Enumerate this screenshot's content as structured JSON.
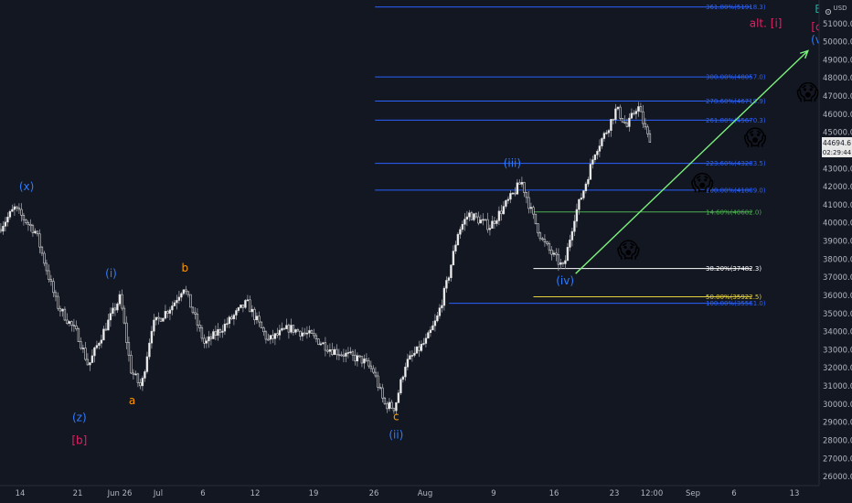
{
  "currency": "USD",
  "last_price": "44694.6",
  "countdown": "02:29:44",
  "x_tick_labels": [
    "14",
    "21",
    "Jun 26",
    "Jul",
    "6",
    "12",
    "19",
    "26",
    "Aug",
    "9",
    "16",
    "23",
    "12:00",
    "Sep",
    "6",
    "13"
  ],
  "colors": {
    "background": "#131722",
    "fib_blue": "#2962ff",
    "fib_green": "#4caf50",
    "fib_white": "#ffffff",
    "fib_yellow": "#e6d13f",
    "arrow": "#7cf27c",
    "wave_blue": "#2f7bff",
    "wave_orange": "#ff9800",
    "wave_pink": "#e91e63",
    "wave_teal": "#26a69a",
    "candle": "#e8e8e8",
    "last_price_bg": "#e8e8e8"
  },
  "chart_data": {
    "type": "candlestick",
    "title": "",
    "xlabel": "",
    "ylabel": "",
    "y_axis_side": "right",
    "ylim": [
      25500,
      52300
    ],
    "y_ticks": [
      26000,
      27000,
      28000,
      29000,
      30000,
      31000,
      32000,
      33000,
      34000,
      35000,
      36000,
      37000,
      38000,
      39000,
      40000,
      41000,
      42000,
      43000,
      44000,
      45000,
      46000,
      47000,
      48000,
      49000,
      50000,
      51000,
      52000
    ],
    "y_tick_labels": [
      "26000.0",
      "27000.0",
      "28000.0",
      "29000.0",
      "30000.0",
      "31000.0",
      "32000.0",
      "33000.0",
      "34000.0",
      "35000.0",
      "36000.0",
      "37000.0",
      "38000.0",
      "39000.0",
      "40000.0",
      "41000.0",
      "42000.0",
      "43000.0",
      "44000.0",
      "45000.0",
      "46000.0",
      "47000.0",
      "48000.0",
      "49000.0",
      "50000.0",
      "51000.0",
      "52000.0"
    ],
    "grid": false,
    "price_path": [
      {
        "date": "2021-06-10",
        "price": 36200
      },
      {
        "date": "2021-06-12",
        "price": 38500
      },
      {
        "date": "2021-06-15",
        "price": 40800
      },
      {
        "date": "2021-06-17",
        "price": 39500
      },
      {
        "date": "2021-06-19",
        "price": 35500
      },
      {
        "date": "2021-06-21",
        "price": 33800
      },
      {
        "date": "2021-06-22",
        "price": 32100
      },
      {
        "date": "2021-06-23",
        "price": 33500
      },
      {
        "date": "2021-06-25",
        "price": 35900
      },
      {
        "date": "2021-06-26",
        "price": 31900
      },
      {
        "date": "2021-06-27",
        "price": 30900
      },
      {
        "date": "2021-06-28",
        "price": 34300
      },
      {
        "date": "2021-06-30",
        "price": 35500
      },
      {
        "date": "2021-07-01",
        "price": 36500
      },
      {
        "date": "2021-07-03",
        "price": 33300
      },
      {
        "date": "2021-07-05",
        "price": 34400
      },
      {
        "date": "2021-07-07",
        "price": 35600
      },
      {
        "date": "2021-07-09",
        "price": 33500
      },
      {
        "date": "2021-07-11",
        "price": 34200
      },
      {
        "date": "2021-07-13",
        "price": 33800
      },
      {
        "date": "2021-07-15",
        "price": 33000
      },
      {
        "date": "2021-07-18",
        "price": 32400
      },
      {
        "date": "2021-07-19",
        "price": 31800
      },
      {
        "date": "2021-07-20",
        "price": 30000
      },
      {
        "date": "2021-07-21",
        "price": 29800
      },
      {
        "date": "2021-07-22",
        "price": 32200
      },
      {
        "date": "2021-07-24",
        "price": 33500
      },
      {
        "date": "2021-07-25",
        "price": 34700
      },
      {
        "date": "2021-07-26",
        "price": 36800
      },
      {
        "date": "2021-07-27",
        "price": 39500
      },
      {
        "date": "2021-07-28",
        "price": 40500
      },
      {
        "date": "2021-07-30",
        "price": 39800
      },
      {
        "date": "2021-08-01",
        "price": 41400
      },
      {
        "date": "2021-08-02",
        "price": 42300
      },
      {
        "date": "2021-08-03",
        "price": 40500
      },
      {
        "date": "2021-08-04",
        "price": 39000
      },
      {
        "date": "2021-08-05",
        "price": 38200
      },
      {
        "date": "2021-08-06",
        "price": 37500
      },
      {
        "date": "2021-08-07",
        "price": 40300
      },
      {
        "date": "2021-08-08",
        "price": 42000
      },
      {
        "date": "2021-08-09",
        "price": 44000
      },
      {
        "date": "2021-08-10",
        "price": 45000
      },
      {
        "date": "2021-08-11",
        "price": 46300
      },
      {
        "date": "2021-08-12",
        "price": 45300
      },
      {
        "date": "2021-08-13",
        "price": 46500
      },
      {
        "date": "2021-08-14",
        "price": 44694.6
      }
    ],
    "fib_levels": [
      {
        "label": "361.80%(51918.3)",
        "price": 51918.3,
        "color": "#2962ff",
        "start": "2021-07-19"
      },
      {
        "label": "300.00%(48057.0)",
        "price": 48057.0,
        "color": "#2962ff",
        "start": "2021-07-19"
      },
      {
        "label": "278.60%(46719.9)",
        "price": 46719.9,
        "color": "#2962ff",
        "start": "2021-07-19"
      },
      {
        "label": "261.80%(45670.3)",
        "price": 45670.3,
        "color": "#2962ff",
        "start": "2021-07-19"
      },
      {
        "label": "223.60%(43283.5)",
        "price": 43283.5,
        "color": "#2962ff",
        "start": "2021-07-19"
      },
      {
        "label": "200.00%(41809.0)",
        "price": 41809.0,
        "color": "#2962ff",
        "start": "2021-07-19"
      },
      {
        "label": "14.60%(40602.0)",
        "price": 40602.0,
        "color": "#4caf50",
        "start": "2021-08-03"
      },
      {
        "label": "38.20%(37482.3)",
        "price": 37482.3,
        "color": "#ffffff",
        "start": "2021-08-03"
      },
      {
        "label": "50.00%(35922.5)",
        "price": 35922.5,
        "color": "#e6d13f",
        "start": "2021-08-03"
      },
      {
        "label": "100.00%(35561.0)",
        "price": 35561.0,
        "color": "#2962ff",
        "start": "2021-07-26"
      }
    ],
    "wave_labels": [
      {
        "text": "(x)",
        "date": "2021-06-16",
        "price": 41800,
        "color": "#2f7bff"
      },
      {
        "text": "(z)",
        "date": "2021-06-21",
        "price": 29050,
        "color": "#2f7bff"
      },
      {
        "text": "[b]",
        "date": "2021-06-21",
        "price": 27800,
        "color": "#e91e63"
      },
      {
        "text": "(i)",
        "date": "2021-06-24",
        "price": 37000,
        "color": "#2f7bff"
      },
      {
        "text": "a",
        "date": "2021-06-26",
        "price": 30000,
        "color": "#ff9800"
      },
      {
        "text": "b",
        "date": "2021-07-01",
        "price": 37300,
        "color": "#ff9800"
      },
      {
        "text": "c",
        "date": "2021-07-21",
        "price": 29100,
        "color": "#ff9800"
      },
      {
        "text": "(ii)",
        "date": "2021-07-21",
        "price": 28100,
        "color": "#2f7bff"
      },
      {
        "text": "(iii)",
        "date": "2021-08-01",
        "price": 43100,
        "color": "#2f7bff"
      },
      {
        "text": "(iv)",
        "date": "2021-08-06",
        "price": 36600,
        "color": "#2f7bff"
      },
      {
        "text": "B",
        "date": "2021-08-30",
        "price": 51600,
        "color": "#26a69a"
      },
      {
        "text": "alt. [i]",
        "date": "2021-08-25",
        "price": 50800,
        "color": "#e91e63"
      },
      {
        "text": "[c]",
        "date": "2021-08-30",
        "price": 50600,
        "color": "#e91e63"
      },
      {
        "text": "(v)",
        "date": "2021-08-30",
        "price": 49900,
        "color": "#2f7bff"
      }
    ],
    "projection_arrow": {
      "from": {
        "date": "2021-08-07",
        "price": 37200
      },
      "to": {
        "date": "2021-08-29",
        "price": 49500
      }
    },
    "emoji_markers": [
      {
        "glyph": "😱",
        "date": "2021-08-12",
        "price": 38100
      },
      {
        "glyph": "😱",
        "date": "2021-08-19",
        "price": 41800
      },
      {
        "glyph": "😱",
        "date": "2021-08-24",
        "price": 44300
      },
      {
        "glyph": "😱",
        "date": "2021-08-29",
        "price": 46800
      }
    ]
  }
}
